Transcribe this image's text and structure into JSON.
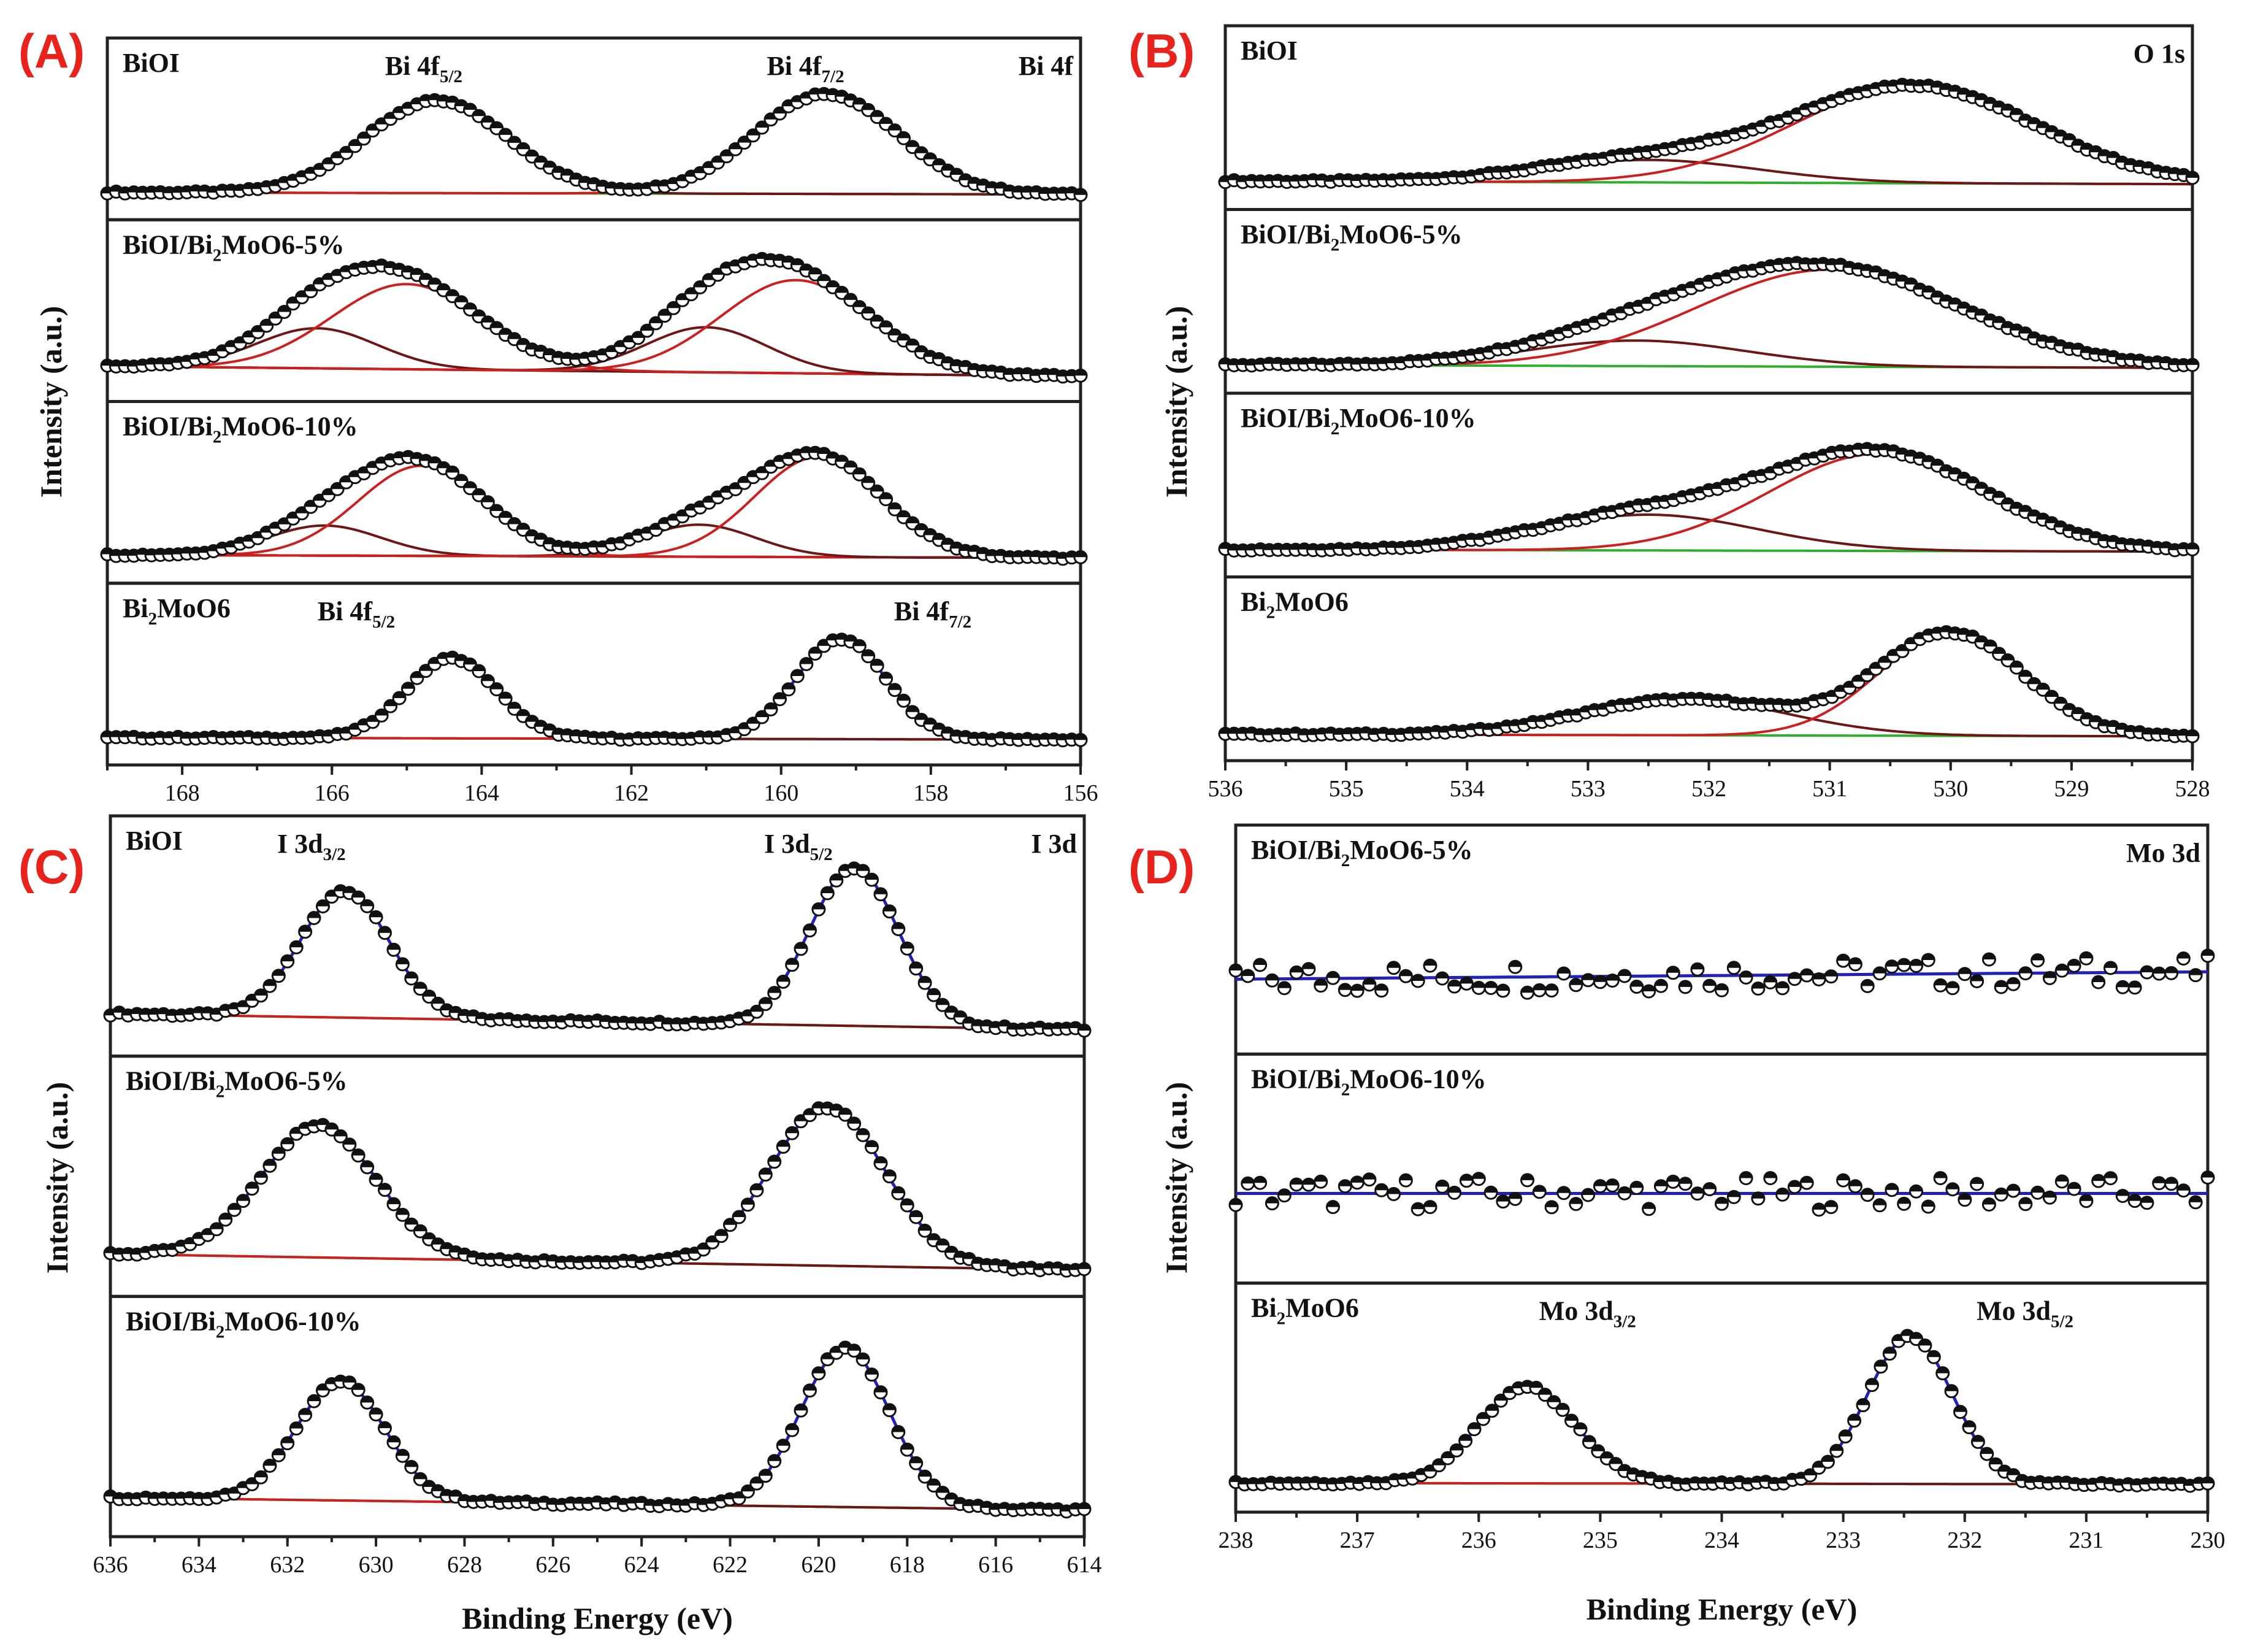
{
  "chart_data": [
    {
      "type": "line",
      "panel_label": "(A)",
      "element": "Bi 4f",
      "xlabel": "",
      "ylabel": "Intensity (a.u.)",
      "xlim": [
        169,
        156
      ],
      "x_ticks": [
        168,
        166,
        164,
        162,
        160,
        158,
        156
      ],
      "stacks": [
        {
          "sample": {
            "base": "BiOI",
            "sub": "",
            "rest": ""
          },
          "labels": [
            {
              "base": "Bi 4f",
              "sub": "5/2",
              "x": 164.8
            },
            {
              "base": "Bi 4f",
              "sub": "7/2",
              "x": 159.7
            }
          ],
          "peaks": [
            {
              "center": 164.6,
              "width": 0.95,
              "height": 0.92
            },
            {
              "center": 159.4,
              "width": 0.95,
              "height": 1.0
            }
          ],
          "components": [
            {
              "center": 164.6,
              "width": 0.95,
              "height": 0.92
            },
            {
              "center": 159.4,
              "width": 0.95,
              "height": 1.0
            }
          ],
          "background": [
            0.04,
            0.02
          ]
        },
        {
          "sample": {
            "base": "BiOI/Bi",
            "sub": "2",
            "rest": "MoO6-5%"
          },
          "labels": [],
          "peaks": [
            {
              "center": 166.2,
              "width": 0.8,
              "height": 0.4
            },
            {
              "center": 165.0,
              "width": 1.0,
              "height": 0.85
            },
            {
              "center": 161.0,
              "width": 0.8,
              "height": 0.45
            },
            {
              "center": 159.8,
              "width": 1.0,
              "height": 0.93
            }
          ],
          "components": [
            {
              "center": 166.2,
              "width": 0.8,
              "height": 0.4
            },
            {
              "center": 165.0,
              "width": 1.0,
              "height": 0.85
            },
            {
              "center": 161.0,
              "width": 0.8,
              "height": 0.45
            },
            {
              "center": 159.8,
              "width": 1.0,
              "height": 0.93
            }
          ],
          "background": [
            0.12,
            0.02
          ]
        },
        {
          "sample": {
            "base": "BiOI/Bi",
            "sub": "2",
            "rest": "MoO6-10%"
          },
          "labels": [],
          "peaks": [
            {
              "center": 166.1,
              "width": 0.75,
              "height": 0.3
            },
            {
              "center": 164.8,
              "width": 0.85,
              "height": 0.9
            },
            {
              "center": 161.1,
              "width": 0.75,
              "height": 0.32
            },
            {
              "center": 159.5,
              "width": 0.85,
              "height": 1.0
            }
          ],
          "components": [
            {
              "center": 166.1,
              "width": 0.75,
              "height": 0.3
            },
            {
              "center": 164.8,
              "width": 0.85,
              "height": 0.9
            },
            {
              "center": 161.1,
              "width": 0.75,
              "height": 0.32
            },
            {
              "center": 159.5,
              "width": 0.85,
              "height": 1.0
            }
          ],
          "background": [
            0.05,
            0.02
          ]
        },
        {
          "sample": {
            "base": "Bi",
            "sub": "2",
            "rest": "MoO6"
          },
          "labels": [
            {
              "base": "Bi 4f",
              "sub": "5/2",
              "x": 165.7
            },
            {
              "base": "Bi 4f",
              "sub": "7/2",
              "x": 158.0
            }
          ],
          "peaks": [
            {
              "center": 164.4,
              "width": 0.6,
              "height": 0.8
            },
            {
              "center": 159.2,
              "width": 0.6,
              "height": 1.0
            }
          ],
          "components": [
            {
              "center": 164.4,
              "width": 0.6,
              "height": 0.8
            },
            {
              "center": 159.2,
              "width": 0.6,
              "height": 1.0
            }
          ],
          "background": [
            0.04,
            0.02
          ]
        }
      ]
    },
    {
      "type": "line",
      "panel_label": "(B)",
      "element": "O 1s",
      "xlabel": "",
      "ylabel": "Intensity (a.u.)",
      "xlim": [
        536,
        528
      ],
      "x_ticks": [
        536,
        535,
        534,
        533,
        532,
        531,
        530,
        529,
        528
      ],
      "stacks": [
        {
          "sample": {
            "base": "BiOI",
            "sub": "",
            "rest": ""
          },
          "labels": [],
          "peaks": [
            {
              "center": 532.5,
              "width": 0.9,
              "height": 0.22
            },
            {
              "center": 530.3,
              "width": 1.0,
              "height": 0.95
            }
          ],
          "components": [
            {
              "center": 532.5,
              "width": 0.9,
              "height": 0.22
            },
            {
              "center": 530.3,
              "width": 1.0,
              "height": 0.95
            }
          ],
          "background": [
            0.05,
            0.02
          ]
        },
        {
          "sample": {
            "base": "BiOI/Bi",
            "sub": "2",
            "rest": "MoO6-5%"
          },
          "labels": [],
          "peaks": [
            {
              "center": 532.6,
              "width": 0.9,
              "height": 0.25
            },
            {
              "center": 531.0,
              "width": 1.1,
              "height": 0.95
            }
          ],
          "components": [
            {
              "center": 532.6,
              "width": 0.9,
              "height": 0.25
            },
            {
              "center": 531.0,
              "width": 1.1,
              "height": 0.95
            }
          ],
          "background": [
            0.05,
            0.02
          ]
        },
        {
          "sample": {
            "base": "BiOI/Bi",
            "sub": "2",
            "rest": "MoO6-10%"
          },
          "labels": [],
          "peaks": [
            {
              "center": 532.5,
              "width": 0.9,
              "height": 0.35
            },
            {
              "center": 530.6,
              "width": 0.9,
              "height": 0.95
            }
          ],
          "components": [
            {
              "center": 532.5,
              "width": 0.9,
              "height": 0.35
            },
            {
              "center": 530.6,
              "width": 0.9,
              "height": 0.95
            }
          ],
          "background": [
            0.04,
            0.02
          ]
        },
        {
          "sample": {
            "base": "Bi",
            "sub": "2",
            "rest": "MoO6"
          },
          "labels": [],
          "peaks": [
            {
              "center": 532.2,
              "width": 0.85,
              "height": 0.35
            },
            {
              "center": 530.0,
              "width": 0.6,
              "height": 1.0
            }
          ],
          "components": [
            {
              "center": 532.2,
              "width": 0.85,
              "height": 0.35
            },
            {
              "center": 530.0,
              "width": 0.6,
              "height": 1.0
            }
          ],
          "background": [
            0.03,
            0.01
          ]
        }
      ]
    },
    {
      "type": "line",
      "panel_label": "(C)",
      "element": "I 3d",
      "xlabel": "Binding Energy (eV)",
      "ylabel": "Intensity (a.u.)",
      "xlim": [
        636,
        614
      ],
      "x_ticks": [
        636,
        634,
        632,
        630,
        628,
        626,
        624,
        622,
        620,
        618,
        616,
        614
      ],
      "stacks": [
        {
          "sample": {
            "base": "BiOI",
            "sub": "",
            "rest": ""
          },
          "labels": [
            {
              "base": "I 3d",
              "sub": "3/2",
              "x": 631.4
            },
            {
              "base": "I 3d",
              "sub": "5/2",
              "x": 620.4
            }
          ],
          "peaks": [
            {
              "center": 630.7,
              "width": 1.0,
              "height": 0.8
            },
            {
              "center": 619.2,
              "width": 1.0,
              "height": 1.0
            }
          ],
          "components": [
            {
              "center": 630.7,
              "width": 1.0,
              "height": 0.8
            },
            {
              "center": 619.2,
              "width": 1.0,
              "height": 1.0
            }
          ],
          "background": [
            0.12,
            0.02
          ]
        },
        {
          "sample": {
            "base": "BiOI/Bi",
            "sub": "2",
            "rest": "MoO6-5%"
          },
          "labels": [],
          "peaks": [
            {
              "center": 631.3,
              "width": 1.3,
              "height": 0.83
            },
            {
              "center": 619.8,
              "width": 1.3,
              "height": 1.0
            }
          ],
          "components": [
            {
              "center": 631.3,
              "width": 1.3,
              "height": 0.83
            },
            {
              "center": 619.8,
              "width": 1.3,
              "height": 1.0
            }
          ],
          "background": [
            0.12,
            0.02
          ]
        },
        {
          "sample": {
            "base": "BiOI/Bi",
            "sub": "2",
            "rest": "MoO6-10%"
          },
          "labels": [],
          "peaks": [
            {
              "center": 630.8,
              "width": 1.0,
              "height": 0.75
            },
            {
              "center": 619.4,
              "width": 1.0,
              "height": 1.0
            }
          ],
          "components": [
            {
              "center": 630.8,
              "width": 1.0,
              "height": 0.75
            },
            {
              "center": 619.4,
              "width": 1.0,
              "height": 1.0
            }
          ],
          "background": [
            0.1,
            0.02
          ]
        }
      ]
    },
    {
      "type": "line",
      "panel_label": "(D)",
      "element": "Mo 3d",
      "xlabel": "Binding Energy (eV)",
      "ylabel": "Intensity (a.u.)",
      "xlim": [
        238,
        230
      ],
      "x_ticks": [
        238,
        237,
        236,
        235,
        234,
        233,
        232,
        231,
        230
      ],
      "stacks": [
        {
          "sample": {
            "base": "BiOI/Bi",
            "sub": "2",
            "rest": "MoO6-5%"
          },
          "labels": [],
          "peaks": [],
          "components": [],
          "background": [
            0.35,
            0.4
          ],
          "noise": true
        },
        {
          "sample": {
            "base": "BiOI/Bi",
            "sub": "2",
            "rest": "MoO6-10%"
          },
          "labels": [],
          "peaks": [],
          "components": [],
          "background": [
            0.45,
            0.45
          ],
          "noise": true
        },
        {
          "sample": {
            "base": "Bi",
            "sub": "2",
            "rest": "MoO6"
          },
          "labels": [
            {
              "base": "Mo 3d",
              "sub": "3/2",
              "x": 235.2
            },
            {
              "base": "Mo 3d",
              "sub": "5/2",
              "x": 231.6
            }
          ],
          "peaks": [
            {
              "center": 235.6,
              "width": 0.4,
              "height": 0.65
            },
            {
              "center": 232.45,
              "width": 0.35,
              "height": 1.0
            }
          ],
          "components": [
            {
              "center": 235.6,
              "width": 0.4,
              "height": 0.65
            },
            {
              "center": 232.45,
              "width": 0.35,
              "height": 1.0
            }
          ],
          "background": [
            0.04,
            0.03
          ]
        }
      ]
    }
  ]
}
